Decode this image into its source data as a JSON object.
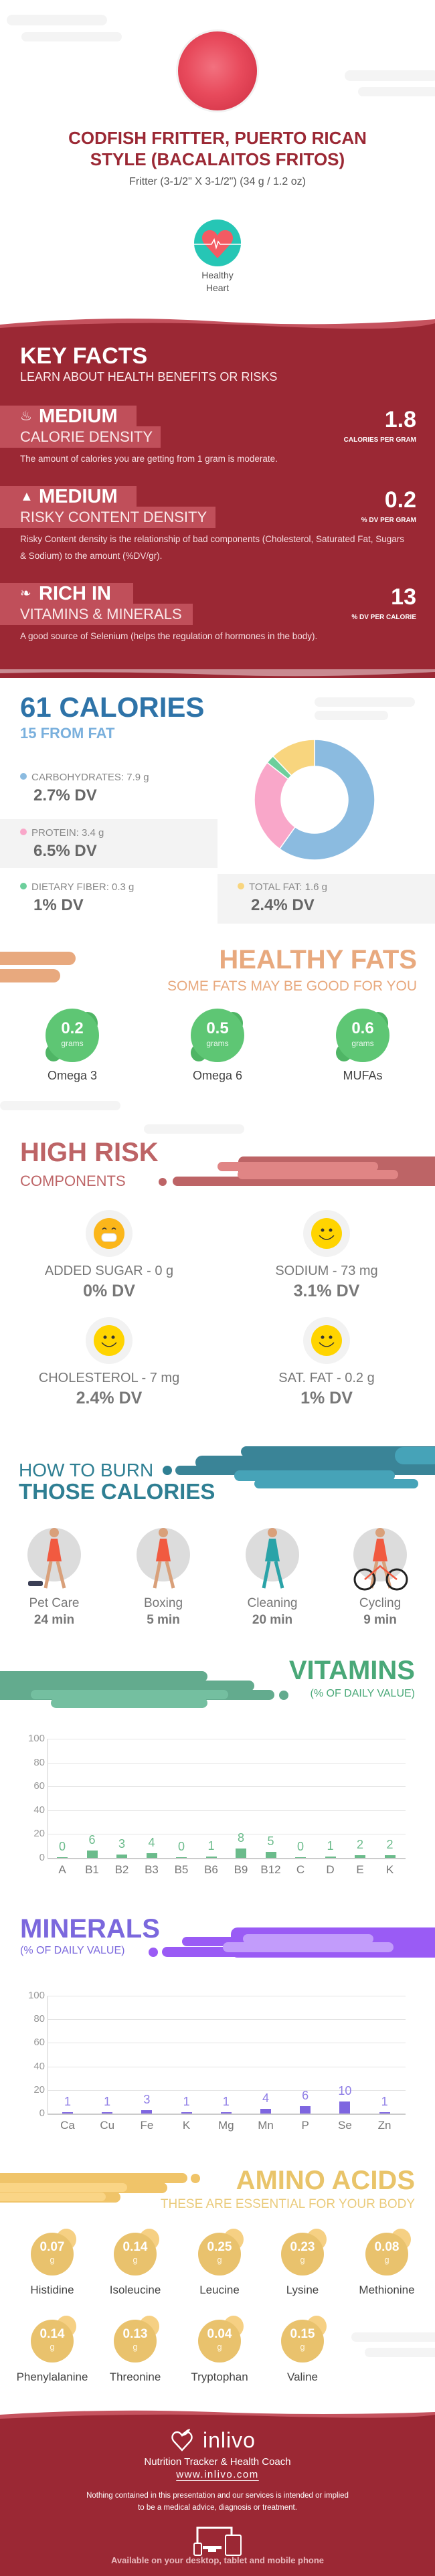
{
  "header": {
    "title_line1": "CODFISH FRITTER, PUERTO RICAN",
    "title_line2": "STYLE (BACALAITOS FRITOS)",
    "serving": "Fritter (3-1/2\" X 3-1/2\") (34 g / 1.2 oz)",
    "badge_line1": "Healthy",
    "badge_line2": "Heart",
    "badge_icon": "heart-pulse-icon"
  },
  "key_facts": {
    "title": "KEY FACTS",
    "subtitle": "LEARN ABOUT HEALTH BENEFITS OR RISKS",
    "items": [
      {
        "icon": "flame-icon",
        "level": "MEDIUM",
        "label": "CALORIE DENSITY",
        "value": "1.8",
        "unit": "CALORIES PER GRAM",
        "description": "The amount of calories you are getting from 1 gram is moderate."
      },
      {
        "icon": "warning-icon",
        "level": "MEDIUM",
        "label": "RISKY CONTENT DENSITY",
        "value": "0.2",
        "unit": "% DV PER GRAM",
        "description": "Risky Content density is the relationship of bad components (Cholesterol, Saturated Fat, Sugars & Sodium) to the amount (%DV/gr)."
      },
      {
        "icon": "leaf-icon",
        "level": "RICH  IN",
        "label": "VITAMINS & MINERALS",
        "value": "13",
        "unit": "% DV PER CALORIE",
        "description": "A good source of Selenium (helps the regulation of hormones in the body)."
      }
    ]
  },
  "calories": {
    "title": "61 CALORIES",
    "subtitle": "15 FROM FAT",
    "nutrients": [
      {
        "label": "CARBOHYDRATES: 7.9 g",
        "dv": "2.7% DV",
        "grams": 7.9,
        "color": "#8bbbe0"
      },
      {
        "label": "PROTEIN: 3.4 g",
        "dv": "6.5% DV",
        "grams": 3.4,
        "color": "#f9a7c9"
      },
      {
        "label": "DIETARY FIBER: 0.3 g",
        "dv": "1% DV",
        "grams": 0.3,
        "color": "#6dcf9c"
      },
      {
        "label": "TOTAL FAT: 1.6 g",
        "dv": "2.4% DV",
        "grams": 1.6,
        "color": "#f8d57e"
      }
    ]
  },
  "healthy_fats": {
    "title": "HEALTHY FATS",
    "subtitle": "SOME FATS MAY BE GOOD FOR YOU",
    "unit": "grams",
    "items": [
      {
        "value": "0.2",
        "label": "Omega 3"
      },
      {
        "value": "0.5",
        "label": "Omega 6"
      },
      {
        "value": "0.6",
        "label": "MUFAs"
      }
    ]
  },
  "high_risk": {
    "title": "HIGH RISK",
    "subtitle": "COMPONENTS",
    "items": [
      {
        "icon": "grinning-face-icon",
        "label": "ADDED SUGAR - 0 g",
        "dv": "0% DV"
      },
      {
        "icon": "smiling-face-icon",
        "label": "SODIUM - 73 mg",
        "dv": "3.1% DV"
      },
      {
        "icon": "smiling-face-icon",
        "label": "CHOLESTEROL - 7 mg",
        "dv": "2.4% DV"
      },
      {
        "icon": "smiling-face-icon",
        "label": "SAT. FAT - 0.2 g",
        "dv": "1% DV"
      }
    ]
  },
  "burn": {
    "title_line1": "HOW TO BURN",
    "title_line2": "THOSE CALORIES",
    "items": [
      {
        "icon": "dog-walking-icon",
        "label": "Pet Care",
        "time": "24 min"
      },
      {
        "icon": "boxing-icon",
        "label": "Boxing",
        "time": "5 min"
      },
      {
        "icon": "sweeping-icon",
        "label": "Cleaning",
        "time": "20 min"
      },
      {
        "icon": "cycling-icon",
        "label": "Cycling",
        "time": "9 min"
      }
    ]
  },
  "vitamins": {
    "title": "VITAMINS",
    "subtitle": "(% OF DAILY VALUE)"
  },
  "minerals": {
    "title": "MINERALS",
    "subtitle": "(% OF DAILY VALUE)"
  },
  "chart_data": [
    {
      "type": "bar",
      "categories": [
        "A",
        "B1",
        "B2",
        "B3",
        "B5",
        "B6",
        "B9",
        "B12",
        "C",
        "D",
        "E",
        "K"
      ],
      "values": [
        0,
        6,
        3,
        4,
        0,
        1,
        8,
        5,
        0,
        1,
        2,
        2
      ],
      "ylim": [
        0,
        100
      ],
      "yticks": [
        "0",
        "20",
        "40",
        "60",
        "80",
        "100"
      ],
      "grid": true,
      "color": "#6bbb8b",
      "label_color": "#6bbb8b"
    },
    {
      "type": "bar",
      "categories": [
        "Ca",
        "Cu",
        "Fe",
        "K",
        "Mg",
        "Mn",
        "P",
        "Se",
        "Zn"
      ],
      "values": [
        1,
        1,
        3,
        1,
        1,
        4,
        6,
        10,
        1
      ],
      "ylim": [
        0,
        100
      ],
      "yticks": [
        "0",
        "20",
        "40",
        "60",
        "80",
        "100"
      ],
      "grid": true,
      "color": "#7e66e0",
      "label_color": "#8f7ee6"
    }
  ],
  "amino_acids": {
    "title": "AMINO ACIDS",
    "subtitle": "THESE ARE ESSENTIAL FOR YOUR BODY",
    "unit": "g",
    "items": [
      {
        "value": "0.07",
        "label": "Histidine"
      },
      {
        "value": "0.14",
        "label": "Isoleucine"
      },
      {
        "value": "0.25",
        "label": "Leucine"
      },
      {
        "value": "0.23",
        "label": "Lysine"
      },
      {
        "value": "0.08",
        "label": "Methionine"
      },
      {
        "value": "0.14",
        "label": "Phenylalanine"
      },
      {
        "value": "0.13",
        "label": "Threonine"
      },
      {
        "value": "0.04",
        "label": "Tryptophan"
      },
      {
        "value": "0.15",
        "label": "Valine"
      }
    ]
  },
  "footer": {
    "brand": "inlivo",
    "tagline": "Nutrition Tracker & Health Coach",
    "url": "www.inlivo.com",
    "disclaimer_line1": "Nothing contained in this presentation and our services is intended or implied",
    "disclaimer_line2": "to be a medical advice, diagnosis or treatment.",
    "availability": "Available on your desktop, tablet and mobile phone"
  },
  "colors": {
    "brand_red": "#9b2834",
    "calories_blue": "#2e73a8",
    "fats_orange": "#e8a97e",
    "fats_green": "#5dbf73",
    "risk_red": "#bd6466",
    "burn_teal": "#2f7f93",
    "vitamins_green": "#4aa878",
    "minerals_purple": "#7b68dd",
    "amino_gold": "#e9c46a"
  }
}
